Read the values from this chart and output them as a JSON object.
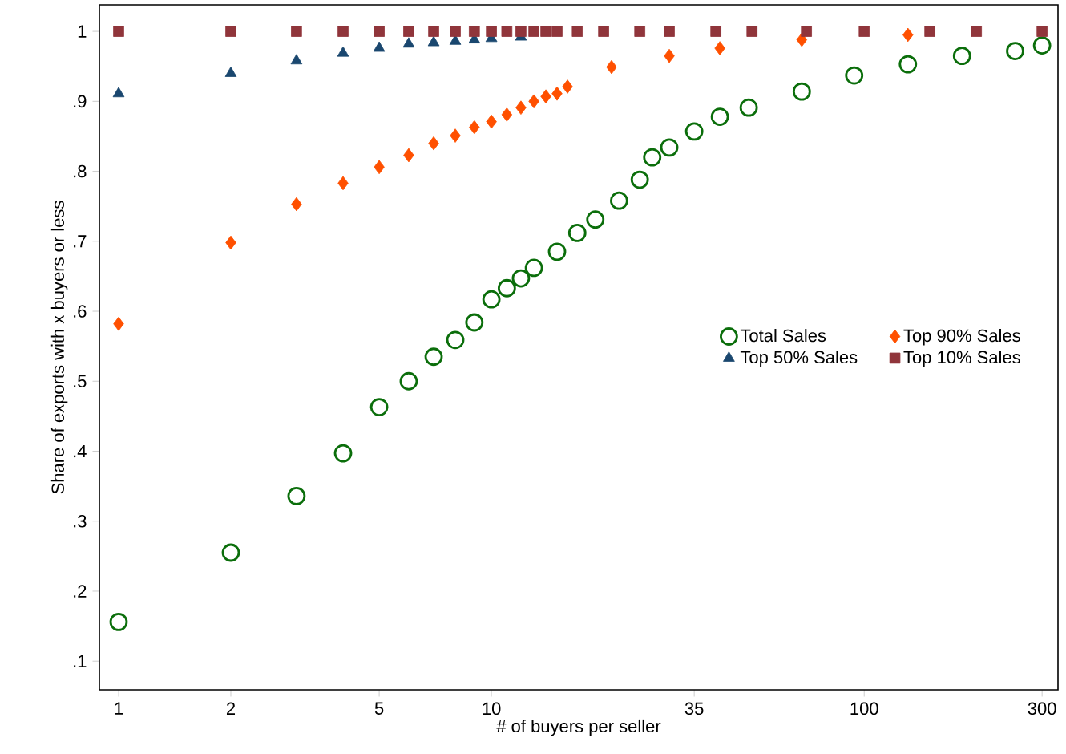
{
  "chart_data": {
    "type": "scatter",
    "xlabel": "# of buyers per seller",
    "ylabel": "Share of exports  with x buyers or less",
    "log": "x",
    "grid": false,
    "legend": "right",
    "xlim": [
      0.888,
      331
    ],
    "ylim": [
      0.059,
      1.038
    ],
    "xticks": [
      1,
      2,
      5,
      10,
      35,
      100,
      300
    ],
    "yticks": [
      {
        "value": 0.1,
        "label": ".1"
      },
      {
        "value": 0.2,
        "label": ".2"
      },
      {
        "value": 0.3,
        "label": ".3"
      },
      {
        "value": 0.4,
        "label": ".4"
      },
      {
        "value": 0.5,
        "label": ".5"
      },
      {
        "value": 0.6,
        "label": ".6"
      },
      {
        "value": 0.7,
        "label": ".7"
      },
      {
        "value": 0.8,
        "label": ".8"
      },
      {
        "value": 0.9,
        "label": ".9"
      },
      {
        "value": 1,
        "label": "1"
      }
    ],
    "series": [
      {
        "name": "Total Sales",
        "color": "#0b6e0b",
        "marker": "circle",
        "x": [
          1,
          2,
          3,
          4,
          5,
          6,
          7,
          8,
          9,
          10,
          11,
          12,
          13,
          15,
          17,
          19,
          22,
          25,
          27,
          30,
          35,
          41,
          49,
          68,
          94,
          131,
          183,
          254,
          300
        ],
        "values": [
          0.156,
          0.255,
          0.336,
          0.397,
          0.463,
          0.5,
          0.535,
          0.559,
          0.584,
          0.617,
          0.633,
          0.647,
          0.662,
          0.685,
          0.712,
          0.731,
          0.758,
          0.788,
          0.82,
          0.834,
          0.857,
          0.878,
          0.891,
          0.914,
          0.937,
          0.953,
          0.965,
          0.972,
          0.98
        ]
      },
      {
        "name": "Top 90% Sales",
        "color": "#ff5000",
        "marker": "diamond",
        "x": [
          1,
          2,
          3,
          4,
          5,
          6,
          7,
          8,
          9,
          10,
          11,
          12,
          13,
          14,
          15,
          16,
          21,
          30,
          41,
          68,
          131
        ],
        "values": [
          0.582,
          0.698,
          0.753,
          0.783,
          0.806,
          0.823,
          0.84,
          0.851,
          0.863,
          0.871,
          0.881,
          0.891,
          0.9,
          0.907,
          0.911,
          0.921,
          0.949,
          0.965,
          0.976,
          0.988,
          0.995
        ]
      },
      {
        "name": "Top 50% Sales",
        "color": "#1a476f",
        "marker": "triangle",
        "x": [
          1,
          2,
          3,
          4,
          5,
          6,
          7,
          8,
          9,
          10,
          12
        ],
        "values": [
          0.911,
          0.94,
          0.958,
          0.969,
          0.976,
          0.982,
          0.984,
          0.986,
          0.988,
          0.99,
          0.992
        ]
      },
      {
        "name": "Top 10% Sales",
        "color": "#90353b",
        "marker": "square",
        "x": [
          1,
          2,
          3,
          4,
          5,
          6,
          7,
          8,
          9,
          10,
          11,
          12,
          13,
          14,
          15,
          17,
          20,
          25,
          30,
          40,
          50,
          70,
          100,
          150,
          200,
          300
        ],
        "values": [
          1,
          1,
          1,
          1,
          1,
          1,
          1,
          1,
          1,
          1,
          1,
          1,
          1,
          1,
          1,
          1,
          1,
          1,
          1,
          1,
          1,
          1,
          1,
          1,
          1,
          1
        ]
      }
    ]
  }
}
